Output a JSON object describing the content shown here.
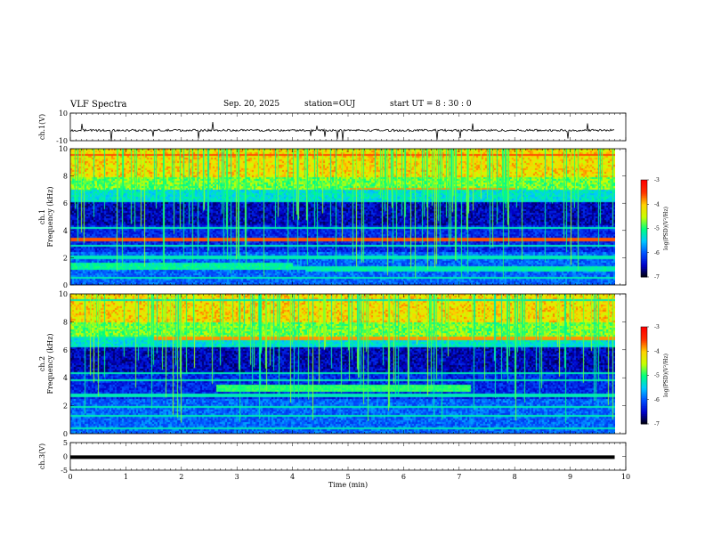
{
  "header": {
    "title": "VLF Spectra",
    "date": "Sep. 20, 2025",
    "station": "station=OUJ",
    "start_ut": "start  UT =   8 : 30 : 0"
  },
  "chart_data": [
    {
      "type": "line",
      "id": "ch1-waveform",
      "ylabel": "ch.1(V)",
      "ylim": [
        -10,
        10
      ],
      "y_tick_labels": [
        "10",
        "-10"
      ],
      "xlim": [
        0,
        9.8
      ],
      "baseline": -2.5,
      "description_values": "noisy waveform near -2.5 V with sparse spikes"
    },
    {
      "type": "heatmap",
      "id": "ch1-spectrogram",
      "ylabel_top": "ch.1",
      "ylabel": "Frequency  (kHz)",
      "ylim": [
        0,
        10
      ],
      "y_tick_labels": [
        "0",
        "2",
        "4",
        "6",
        "8",
        "10"
      ],
      "xlim": [
        0,
        9.8
      ],
      "colorbar": {
        "label": "log(PSD)(V²/Hz)",
        "range": [
          -7,
          -3
        ],
        "tick_labels": [
          "-3",
          "-4",
          "-5",
          "-6",
          "-7"
        ]
      }
    },
    {
      "type": "heatmap",
      "id": "ch2-spectrogram",
      "ylabel_top": "ch.2",
      "ylabel": "Frequency  (kHz)",
      "ylim": [
        0,
        10
      ],
      "y_tick_labels": [
        "0",
        "2",
        "4",
        "6",
        "8",
        "10"
      ],
      "xlim": [
        0,
        9.8
      ],
      "colorbar": {
        "label": "log(PSD)(V²/Hz)",
        "range": [
          -7,
          -3
        ],
        "tick_labels": [
          "-3",
          "-4",
          "-5",
          "-6",
          "-7"
        ]
      }
    },
    {
      "type": "line",
      "id": "ch3-waveform",
      "ylabel": "ch.3(V)",
      "ylim": [
        -5,
        5
      ],
      "y_tick_labels": [
        "5",
        "0",
        "-5"
      ],
      "xlim": [
        0,
        9.8
      ],
      "baseline": -0.3
    }
  ],
  "x_axis": {
    "label": "Time  (min)",
    "range": [
      0,
      10
    ],
    "tick_labels": [
      "0",
      "1",
      "2",
      "3",
      "4",
      "5",
      "6",
      "7",
      "8",
      "9",
      "10"
    ]
  },
  "colors": {
    "colormap": [
      "#000000",
      "#0000c8",
      "#0050ff",
      "#00c8ff",
      "#00ff80",
      "#c8ff00",
      "#ffd200",
      "#ff3200",
      "#ff0000"
    ]
  }
}
